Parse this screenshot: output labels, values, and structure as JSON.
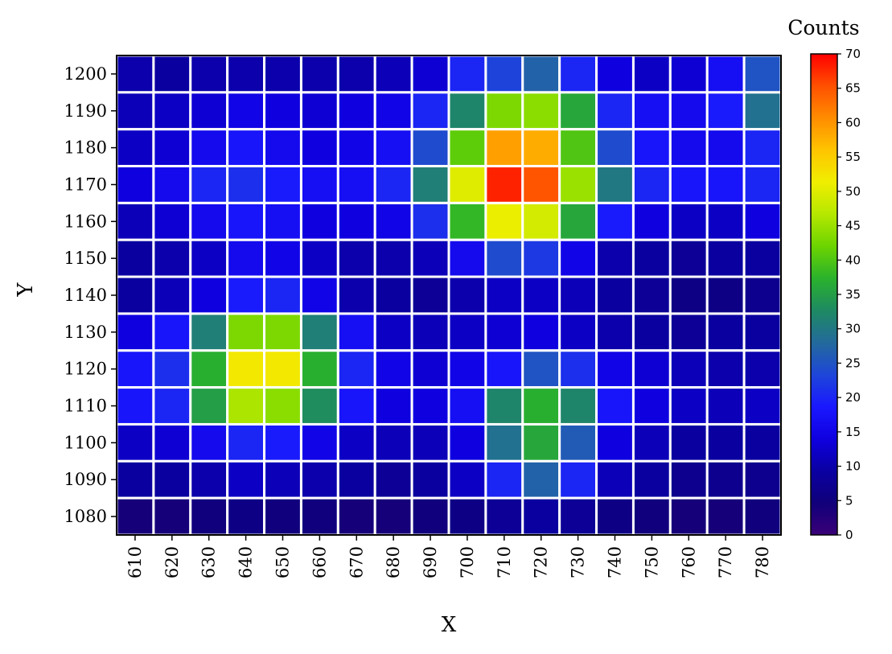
{
  "chart_data": {
    "type": "heatmap",
    "title": "",
    "xlabel": "X",
    "ylabel": "Y",
    "x": [
      610,
      620,
      630,
      640,
      650,
      660,
      670,
      680,
      690,
      700,
      710,
      720,
      730,
      740,
      750,
      760,
      770,
      780
    ],
    "y": [
      1200,
      1190,
      1180,
      1170,
      1160,
      1150,
      1140,
      1130,
      1120,
      1110,
      1100,
      1090,
      1080
    ],
    "values": [
      [
        10,
        9,
        10,
        10,
        10,
        10,
        10,
        11,
        13,
        20,
        23,
        27,
        20,
        14,
        12,
        13,
        17,
        25
      ],
      [
        11,
        12,
        13,
        15,
        14,
        13,
        14,
        15,
        20,
        32,
        43,
        44,
        36,
        20,
        17,
        16,
        19,
        29
      ],
      [
        12,
        13,
        16,
        18,
        16,
        14,
        15,
        17,
        24,
        41,
        59,
        58,
        40,
        24,
        18,
        16,
        16,
        20
      ],
      [
        14,
        16,
        20,
        21,
        19,
        17,
        17,
        20,
        31,
        50,
        68,
        65,
        45,
        30,
        20,
        18,
        18,
        20
      ],
      [
        11,
        13,
        16,
        18,
        17,
        14,
        14,
        15,
        21,
        38,
        51,
        49,
        36,
        19,
        14,
        12,
        12,
        14
      ],
      [
        9,
        10,
        12,
        16,
        15,
        12,
        10,
        10,
        11,
        16,
        24,
        22,
        15,
        10,
        9,
        8,
        9,
        9
      ],
      [
        9,
        11,
        14,
        19,
        20,
        15,
        10,
        9,
        8,
        10,
        12,
        12,
        11,
        9,
        8,
        6,
        6,
        7
      ],
      [
        14,
        18,
        31,
        43,
        43,
        31,
        17,
        12,
        11,
        12,
        13,
        14,
        12,
        10,
        9,
        8,
        9,
        9
      ],
      [
        18,
        21,
        37,
        52,
        52,
        37,
        20,
        15,
        13,
        15,
        18,
        25,
        21,
        15,
        13,
        11,
        10,
        10
      ],
      [
        18,
        20,
        35,
        46,
        44,
        33,
        18,
        14,
        14,
        17,
        32,
        37,
        32,
        18,
        14,
        12,
        11,
        12
      ],
      [
        12,
        13,
        16,
        20,
        19,
        15,
        12,
        11,
        11,
        14,
        29,
        36,
        26,
        14,
        11,
        9,
        9,
        9
      ],
      [
        9,
        9,
        10,
        12,
        11,
        10,
        9,
        8,
        9,
        12,
        20,
        27,
        20,
        11,
        9,
        7,
        7,
        7
      ],
      [
        4,
        4,
        5,
        6,
        5,
        5,
        4,
        4,
        5,
        6,
        8,
        9,
        8,
        6,
        5,
        4,
        4,
        5
      ]
    ],
    "colorbar": {
      "title": "Counts",
      "min": 0,
      "max": 70,
      "ticks": [
        0,
        5,
        10,
        15,
        20,
        25,
        30,
        35,
        40,
        45,
        50,
        55,
        60,
        65,
        70
      ],
      "colormap": "rainbow",
      "colors": [
        "#3a0078",
        "#10007a",
        "#0a00a2",
        "#0f00e0",
        "#1a18ff",
        "#1e46d8",
        "#236a9c",
        "#1e8a62",
        "#2ab22c",
        "#6cd400",
        "#b5e800",
        "#f0ee00",
        "#ffc400",
        "#ff8c00",
        "#ff5000",
        "#ff0000"
      ]
    },
    "grid": false,
    "cell_border_color": "#ffffff"
  }
}
